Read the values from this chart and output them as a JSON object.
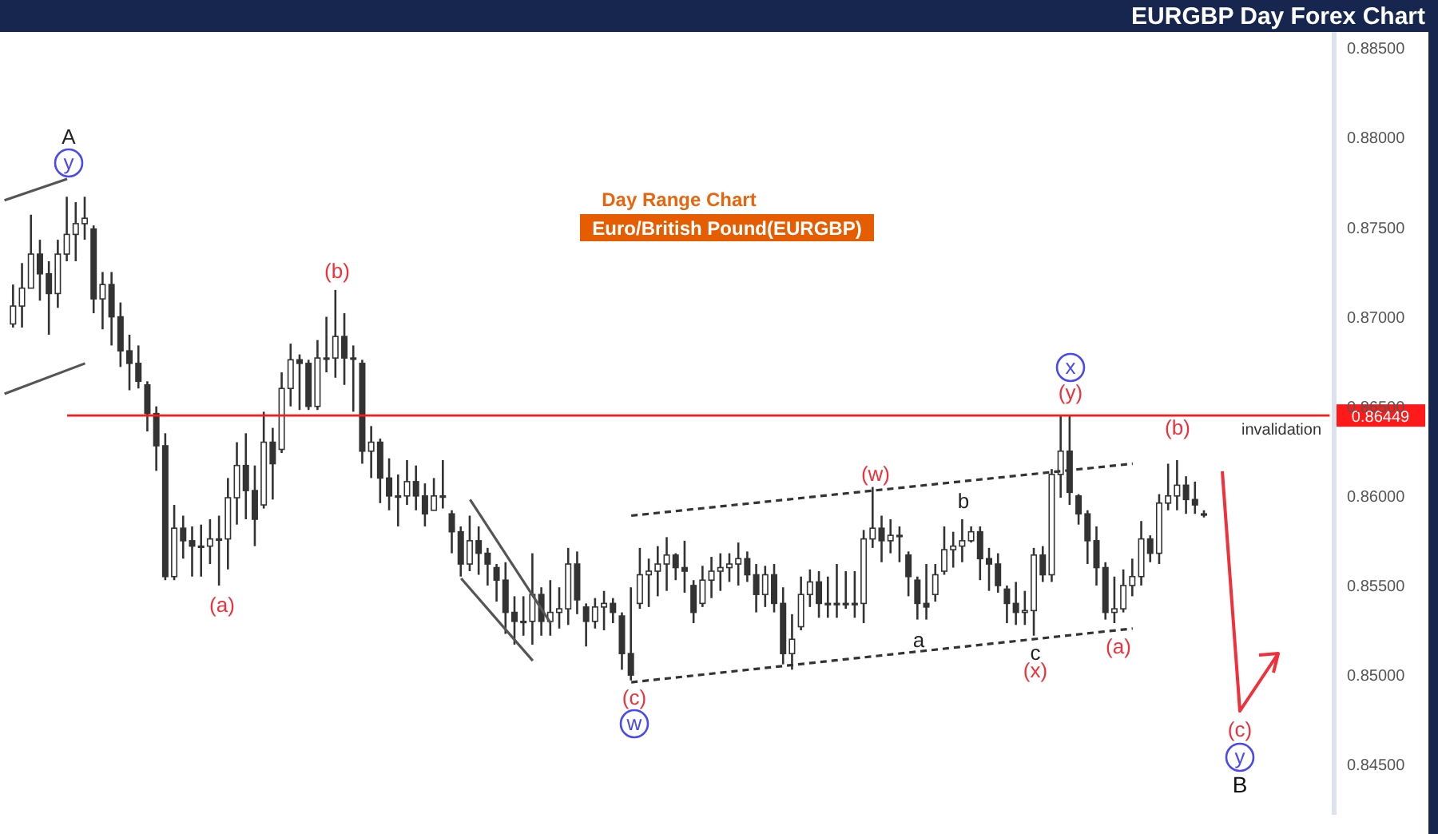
{
  "chart_data": {
    "type": "candlestick",
    "title": "EURGBP Day Forex Chart",
    "subtitle": "Day Range Chart",
    "annotations": [
      "Euro/British Pound(EURGBP)",
      "A",
      "y",
      "(b)",
      "(a)",
      "(c)",
      "w",
      "(w)",
      "b",
      "a",
      "c",
      "(x)",
      "x",
      "(y)",
      "(b)",
      "invalidation",
      "(a)",
      "(c)",
      "y",
      "B"
    ],
    "color": "#333333",
    "tick_labels": "y",
    "marker": "none",
    "ylim": [
      0.8422,
      0.8859
    ],
    "yticks": [
      {
        "value": 0.845,
        "label": "0.84500"
      },
      {
        "value": 0.85,
        "label": "0.85000"
      },
      {
        "value": 0.855,
        "label": "0.85500"
      },
      {
        "value": 0.86,
        "label": "0.86000"
      },
      {
        "value": 0.865,
        "label": "0.86500"
      },
      {
        "value": 0.87,
        "label": "0.87000"
      },
      {
        "value": 0.875,
        "label": "0.87500"
      },
      {
        "value": 0.88,
        "label": "0.88000"
      },
      {
        "value": 0.885,
        "label": "0.88500"
      }
    ],
    "ref_lines": [
      {
        "axis": "y",
        "value": 0.86449,
        "label": "0.86449",
        "color": "#ff1a1a"
      }
    ],
    "categories": [
      null,
      null,
      null,
      null,
      null,
      null,
      null,
      null,
      null,
      null,
      null,
      null,
      null,
      null,
      null,
      null,
      null,
      null,
      null,
      null,
      null,
      null,
      null,
      null,
      null,
      null,
      null,
      null,
      null,
      null,
      null,
      null,
      null,
      null,
      null,
      null,
      null,
      null,
      null,
      null,
      null,
      null,
      null,
      null,
      null,
      null,
      null,
      null,
      null,
      null,
      null,
      null,
      null,
      null,
      null,
      null,
      null,
      null,
      null,
      null,
      null,
      null,
      null,
      null,
      null,
      null,
      null,
      null,
      null,
      null,
      null,
      null,
      null,
      null,
      null,
      null,
      null,
      null,
      null,
      null,
      null,
      null,
      null,
      null,
      null,
      null,
      null,
      null,
      null,
      null,
      null,
      null,
      null,
      null,
      null,
      null,
      null,
      null,
      null,
      null,
      null,
      null,
      null,
      null,
      null,
      null,
      null,
      null,
      null,
      null,
      null,
      null,
      null,
      null,
      null,
      null,
      null,
      null,
      null,
      null,
      null,
      null,
      null,
      null,
      null,
      null,
      null,
      null,
      null,
      null,
      null,
      null,
      null,
      null,
      null,
      null,
      null,
      null,
      null,
      null,
      null,
      null,
      null,
      null,
      null,
      null,
      null,
      null,
      null
    ],
    "ohlc": [
      null,
      [
        0.8696,
        0.8718,
        0.8694,
        0.8706
      ],
      [
        0.8706,
        0.873,
        0.8694,
        0.8716
      ],
      [
        0.8716,
        0.8757,
        0.8716,
        0.8735
      ],
      [
        0.8735,
        0.8743,
        0.8709,
        0.8724
      ],
      [
        0.8724,
        0.8731,
        0.869,
        0.8713
      ],
      [
        0.8713,
        0.8743,
        0.8705,
        0.8735
      ],
      [
        0.8735,
        0.8767,
        0.8731,
        0.8746
      ],
      [
        0.8746,
        0.8764,
        0.8731,
        0.8752
      ],
      [
        0.8752,
        0.8767,
        0.8743,
        0.8755
      ],
      [
        0.8749,
        0.8751,
        0.8702,
        0.871
      ],
      [
        0.871,
        0.8725,
        0.8693,
        0.8718
      ],
      [
        0.8718,
        0.8725,
        0.8684,
        0.87
      ],
      [
        0.87,
        0.8708,
        0.8672,
        0.8681
      ],
      [
        0.8681,
        0.869,
        0.8659,
        0.8674
      ],
      [
        0.8674,
        0.8684,
        0.866,
        0.8664
      ],
      [
        0.8662,
        0.8664,
        0.8636,
        0.8646
      ],
      [
        0.8646,
        0.865,
        0.8614,
        0.8628
      ],
      [
        0.8628,
        0.8635,
        0.8553,
        0.8555
      ],
      [
        0.8555,
        0.8595,
        0.8553,
        0.8582
      ],
      [
        0.8582,
        0.8589,
        0.8565,
        0.8575
      ],
      [
        0.8575,
        0.8583,
        0.8555,
        0.8572
      ],
      [
        0.8572,
        0.8584,
        0.8555,
        0.8572
      ],
      [
        0.8572,
        0.8587,
        0.8562,
        0.8576
      ],
      [
        0.8576,
        0.8589,
        0.855,
        0.8576
      ],
      [
        0.8576,
        0.861,
        0.8559,
        0.8599
      ],
      [
        0.8599,
        0.863,
        0.8584,
        0.8617
      ],
      [
        0.8617,
        0.8635,
        0.8587,
        0.8603
      ],
      [
        0.8603,
        0.8617,
        0.8572,
        0.8587
      ],
      [
        0.8595,
        0.8647,
        0.8593,
        0.863
      ],
      [
        0.863,
        0.8638,
        0.8598,
        0.8618
      ],
      [
        0.8626,
        0.8669,
        0.8624,
        0.866
      ],
      [
        0.866,
        0.8685,
        0.865,
        0.8676
      ],
      [
        0.8676,
        0.8679,
        0.8648,
        0.8674
      ],
      [
        0.8674,
        0.8676,
        0.8648,
        0.865
      ],
      [
        0.865,
        0.8687,
        0.8648,
        0.8677
      ],
      [
        0.8677,
        0.87,
        0.8669,
        0.8677
      ],
      [
        0.8677,
        0.8715,
        0.8666,
        0.8689
      ],
      [
        0.8689,
        0.8702,
        0.8662,
        0.8677
      ],
      [
        0.8677,
        0.8684,
        0.8647,
        0.8677
      ],
      [
        0.8674,
        0.8676,
        0.8618,
        0.8625
      ],
      [
        0.8625,
        0.8639,
        0.861,
        0.863
      ],
      [
        0.863,
        0.8632,
        0.8596,
        0.861
      ],
      [
        0.861,
        0.8621,
        0.8592,
        0.86
      ],
      [
        0.86,
        0.8612,
        0.8583,
        0.86
      ],
      [
        0.86,
        0.862,
        0.8595,
        0.8608
      ],
      [
        0.8608,
        0.8617,
        0.8592,
        0.86
      ],
      [
        0.86,
        0.8607,
        0.8583,
        0.859
      ],
      [
        0.8592,
        0.861,
        0.8592,
        0.86
      ],
      [
        0.86,
        0.862,
        0.8593,
        0.86
      ],
      [
        0.859,
        0.8592,
        0.8568,
        0.858
      ],
      [
        0.858,
        0.8583,
        0.8555,
        0.8562
      ],
      [
        0.8562,
        0.8589,
        0.8558,
        0.8575
      ],
      [
        0.8575,
        0.8583,
        0.8556,
        0.8568
      ],
      [
        0.8568,
        0.8571,
        0.855,
        0.8562
      ],
      [
        0.856,
        0.8562,
        0.8541,
        0.8553
      ],
      [
        0.8553,
        0.8563,
        0.8523,
        0.8535
      ],
      [
        0.8535,
        0.8544,
        0.8517,
        0.853
      ],
      [
        0.853,
        0.8544,
        0.8522,
        0.853
      ],
      [
        0.853,
        0.8568,
        0.8517,
        0.8545
      ],
      [
        0.8545,
        0.8549,
        0.8522,
        0.853
      ],
      [
        0.853,
        0.8553,
        0.8522,
        0.8535
      ],
      [
        0.8535,
        0.8549,
        0.8526,
        0.8537
      ],
      [
        0.8537,
        0.8571,
        0.8528,
        0.8562
      ],
      [
        0.8562,
        0.8569,
        0.8534,
        0.8542
      ],
      [
        0.8538,
        0.854,
        0.8516,
        0.853
      ],
      [
        0.853,
        0.8543,
        0.8526,
        0.8538
      ],
      [
        0.8538,
        0.8547,
        0.8525,
        0.854
      ],
      [
        0.854,
        0.8543,
        0.8529,
        0.8535
      ],
      [
        0.8533,
        0.8535,
        0.8503,
        0.8512
      ],
      [
        0.8512,
        0.8549,
        0.8497,
        0.85
      ],
      [
        0.854,
        0.8571,
        0.8537,
        0.8556
      ],
      [
        0.8556,
        0.8565,
        0.8538,
        0.8558
      ],
      [
        0.8558,
        0.8572,
        0.8544,
        0.8562
      ],
      [
        0.8562,
        0.8577,
        0.8547,
        0.8567
      ],
      [
        0.8567,
        0.8568,
        0.8553,
        0.856
      ],
      [
        0.856,
        0.8575,
        0.8546,
        0.8558
      ],
      [
        0.855,
        0.8553,
        0.8529,
        0.8535
      ],
      [
        0.854,
        0.8561,
        0.8538,
        0.8553
      ],
      [
        0.8553,
        0.8566,
        0.8543,
        0.8558
      ],
      [
        0.8558,
        0.8568,
        0.8547,
        0.856
      ],
      [
        0.856,
        0.8568,
        0.8552,
        0.8562
      ],
      [
        0.8562,
        0.8574,
        0.855,
        0.8565
      ],
      [
        0.8565,
        0.8569,
        0.8552,
        0.8556
      ],
      [
        0.8556,
        0.8562,
        0.8535,
        0.8545
      ],
      [
        0.8545,
        0.8561,
        0.8538,
        0.8556
      ],
      [
        0.8556,
        0.8562,
        0.8535,
        0.854
      ],
      [
        0.854,
        0.8549,
        0.8506,
        0.8512
      ],
      [
        0.8512,
        0.8534,
        0.8503,
        0.852
      ],
      [
        0.8527,
        0.8555,
        0.8525,
        0.8545
      ],
      [
        0.8545,
        0.8559,
        0.8538,
        0.8552
      ],
      [
        0.8552,
        0.8558,
        0.8532,
        0.854
      ],
      [
        0.854,
        0.8555,
        0.8532,
        0.854
      ],
      [
        0.854,
        0.8562,
        0.8532,
        0.854
      ],
      [
        0.854,
        0.8558,
        0.8537,
        0.854
      ],
      [
        0.854,
        0.8558,
        0.8532,
        0.854
      ],
      [
        0.854,
        0.8581,
        0.8529,
        0.8576
      ],
      [
        0.8576,
        0.8605,
        0.8571,
        0.8582
      ],
      [
        0.8582,
        0.8589,
        0.8563,
        0.8575
      ],
      [
        0.8575,
        0.8587,
        0.8568,
        0.8578
      ],
      [
        0.8578,
        0.8583,
        0.8563,
        0.8578
      ],
      [
        0.8567,
        0.8569,
        0.8544,
        0.8555
      ],
      [
        0.8553,
        0.8555,
        0.8531,
        0.854
      ],
      [
        0.854,
        0.8562,
        0.8531,
        0.8538
      ],
      [
        0.8545,
        0.8562,
        0.8541,
        0.8556
      ],
      [
        0.8558,
        0.8583,
        0.8556,
        0.857
      ],
      [
        0.857,
        0.858,
        0.856,
        0.8572
      ],
      [
        0.8572,
        0.8587,
        0.8563,
        0.8575
      ],
      [
        0.8575,
        0.8583,
        0.8574,
        0.858
      ],
      [
        0.858,
        0.8583,
        0.8553,
        0.8565
      ],
      [
        0.8565,
        0.8571,
        0.8547,
        0.8562
      ],
      [
        0.8562,
        0.8568,
        0.8546,
        0.855
      ],
      [
        0.8548,
        0.855,
        0.8529,
        0.854
      ],
      [
        0.854,
        0.8552,
        0.8528,
        0.8535
      ],
      [
        0.8535,
        0.8547,
        0.8528,
        0.8536
      ],
      [
        0.8536,
        0.8571,
        0.8522,
        0.8567
      ],
      [
        0.8567,
        0.8572,
        0.8552,
        0.8556
      ],
      [
        0.8556,
        0.8615,
        0.8552,
        0.8612
      ],
      [
        0.8612,
        0.8645,
        0.8599,
        0.8625
      ],
      [
        0.8625,
        0.8645,
        0.8595,
        0.8602
      ],
      [
        0.86,
        0.8601,
        0.8584,
        0.859
      ],
      [
        0.859,
        0.8592,
        0.8562,
        0.8575
      ],
      [
        0.8575,
        0.8583,
        0.855,
        0.856
      ],
      [
        0.856,
        0.8563,
        0.8531,
        0.8535
      ],
      [
        0.8535,
        0.8555,
        0.8529,
        0.8537
      ],
      [
        0.8537,
        0.8559,
        0.8535,
        0.855
      ],
      [
        0.855,
        0.8565,
        0.8544,
        0.8555
      ],
      [
        0.8555,
        0.8586,
        0.855,
        0.8576
      ],
      [
        0.8576,
        0.8578,
        0.8563,
        0.8568
      ],
      [
        0.8568,
        0.8601,
        0.8562,
        0.8596
      ],
      [
        0.8596,
        0.8618,
        0.8592,
        0.86
      ],
      [
        0.86,
        0.862,
        0.8592,
        0.8606
      ],
      [
        0.8606,
        0.8611,
        0.859,
        0.8598
      ],
      [
        0.8598,
        0.8608,
        0.859,
        0.8595
      ],
      [
        0.859,
        0.8592,
        0.8588,
        0.859
      ],
      null,
      null,
      null,
      null,
      null,
      null,
      null,
      null,
      null,
      null,
      null,
      null,
      null,
      null
    ],
    "series": [
      {
        "type": "line",
        "color": "#333333",
        "line_style": "dashed",
        "values": [
          null,
          null,
          null,
          null,
          null,
          null,
          null,
          null,
          null,
          null,
          null,
          null,
          null,
          null,
          null,
          null,
          null,
          null,
          null,
          null,
          null,
          null,
          null,
          null,
          null,
          null,
          null,
          null,
          null,
          null,
          null,
          null,
          null,
          null,
          null,
          null,
          null,
          null,
          null,
          null,
          null,
          null,
          null,
          null,
          null,
          null,
          null,
          null,
          null,
          null,
          null,
          null,
          null,
          null,
          null,
          null,
          null,
          null,
          null,
          null,
          null,
          null,
          null,
          null,
          null,
          null,
          null,
          null,
          null,
          null,
          0.8589,
          null,
          null,
          null,
          null,
          null,
          null,
          null,
          null,
          null,
          null,
          null,
          null,
          null,
          null,
          null,
          null,
          null,
          null,
          null,
          null,
          null,
          null,
          null,
          null,
          null,
          null,
          null,
          null,
          null,
          null,
          null,
          null,
          null,
          null,
          null,
          null,
          null,
          null,
          null,
          null,
          null,
          null,
          null,
          null,
          null,
          null,
          null,
          null,
          null,
          null,
          null,
          null,
          null,
          null,
          null,
          0.8618,
          null,
          null,
          null,
          null,
          null,
          null,
          null,
          null,
          null,
          null,
          null,
          null,
          null,
          null,
          null,
          null,
          null,
          null,
          null,
          null,
          null,
          null
        ]
      },
      {
        "type": "line",
        "color": "#333333",
        "line_style": "dashed",
        "values": [
          null,
          null,
          null,
          null,
          null,
          null,
          null,
          null,
          null,
          null,
          null,
          null,
          null,
          null,
          null,
          null,
          null,
          null,
          null,
          null,
          null,
          null,
          null,
          null,
          null,
          null,
          null,
          null,
          null,
          null,
          null,
          null,
          null,
          null,
          null,
          null,
          null,
          null,
          null,
          null,
          null,
          null,
          null,
          null,
          null,
          null,
          null,
          null,
          null,
          null,
          null,
          null,
          null,
          null,
          null,
          null,
          null,
          null,
          null,
          null,
          null,
          null,
          null,
          null,
          null,
          null,
          null,
          null,
          null,
          null,
          0.8496,
          null,
          null,
          null,
          null,
          null,
          null,
          null,
          null,
          null,
          null,
          null,
          null,
          null,
          null,
          null,
          null,
          null,
          null,
          null,
          null,
          null,
          null,
          null,
          null,
          null,
          null,
          null,
          null,
          null,
          null,
          null,
          null,
          null,
          null,
          null,
          null,
          null,
          null,
          null,
          null,
          null,
          null,
          null,
          null,
          null,
          null,
          null,
          null,
          null,
          null,
          null,
          null,
          null,
          null,
          null,
          0.8526,
          null,
          null,
          null,
          null,
          null,
          null,
          null,
          null,
          null,
          null,
          null,
          null,
          null,
          null,
          null,
          null,
          null,
          null,
          null,
          null,
          null,
          null
        ]
      },
      {
        "type": "line",
        "color": "#555555",
        "line_style": "solid",
        "values": [
          0.8765,
          null,
          null,
          null,
          null,
          null,
          null,
          0.8777,
          null,
          null,
          null,
          null,
          null,
          null,
          null,
          null,
          null,
          null,
          null,
          null,
          null,
          null,
          null,
          null,
          null,
          null,
          null,
          null,
          null,
          null,
          null,
          null,
          null,
          null,
          null,
          null,
          null,
          null,
          null,
          null,
          null,
          null,
          null,
          null,
          null,
          null,
          null,
          null,
          null,
          null,
          null,
          null,
          null,
          null,
          null,
          null,
          null,
          null,
          null,
          null,
          null,
          null,
          null,
          null,
          null,
          null,
          null,
          null,
          null,
          null,
          null,
          null,
          null,
          null,
          null,
          null,
          null,
          null,
          null,
          null,
          null,
          null,
          null,
          null,
          null,
          null,
          null,
          null,
          null,
          null,
          null,
          null,
          null,
          null,
          null,
          null,
          null,
          null,
          null,
          null,
          null,
          null,
          null,
          null,
          null,
          null,
          null,
          null,
          null,
          null,
          null,
          null,
          null,
          null,
          null,
          null,
          null,
          null,
          null,
          null,
          null,
          null,
          null,
          null,
          null,
          null,
          null,
          null,
          null,
          null,
          null,
          null,
          null,
          null,
          null,
          null,
          null,
          null,
          null,
          null,
          null,
          null,
          null,
          null,
          null,
          null,
          null,
          null,
          null
        ]
      },
      {
        "type": "line",
        "color": "#555555",
        "line_style": "solid",
        "values": [
          0.8657,
          null,
          null,
          null,
          null,
          null,
          null,
          null,
          null,
          0.8674,
          null,
          null,
          null,
          null,
          null,
          null,
          null,
          null,
          null,
          null,
          null,
          null,
          null,
          null,
          null,
          null,
          null,
          null,
          null,
          null,
          null,
          null,
          null,
          null,
          null,
          null,
          null,
          null,
          null,
          null,
          null,
          null,
          null,
          null,
          null,
          null,
          null,
          null,
          null,
          null,
          null,
          null,
          null,
          null,
          null,
          null,
          null,
          null,
          null,
          null,
          null,
          null,
          null,
          null,
          null,
          null,
          null,
          null,
          null,
          null,
          null,
          null,
          null,
          null,
          null,
          null,
          null,
          null,
          null,
          null,
          null,
          null,
          null,
          null,
          null,
          null,
          null,
          null,
          null,
          null,
          null,
          null,
          null,
          null,
          null,
          null,
          null,
          null,
          null,
          null,
          null,
          null,
          null,
          null,
          null,
          null,
          null,
          null,
          null,
          null,
          null,
          null,
          null,
          null,
          null,
          null,
          null,
          null,
          null,
          null,
          null,
          null,
          null,
          null,
          null,
          null,
          null,
          null,
          null,
          null,
          null,
          null,
          null,
          null,
          null,
          null,
          null,
          null,
          null,
          null,
          null,
          null,
          null,
          null,
          null,
          null,
          null,
          null,
          null
        ]
      },
      {
        "type": "line",
        "color": "#555555",
        "line_style": "solid",
        "values": [
          null,
          null,
          null,
          null,
          null,
          null,
          null,
          null,
          null,
          null,
          null,
          null,
          null,
          null,
          null,
          null,
          null,
          null,
          null,
          null,
          null,
          null,
          null,
          null,
          null,
          null,
          null,
          null,
          null,
          null,
          null,
          null,
          null,
          null,
          null,
          null,
          null,
          null,
          null,
          null,
          null,
          null,
          null,
          null,
          null,
          null,
          null,
          null,
          null,
          null,
          null,
          null,
          0.8598,
          null,
          null,
          null,
          null,
          null,
          null,
          null,
          null,
          0.8529,
          null,
          null,
          null,
          null,
          null,
          null,
          null,
          null,
          null,
          null,
          null,
          null,
          null,
          null,
          null,
          null,
          null,
          null,
          null,
          null,
          null,
          null,
          null,
          null,
          null,
          null,
          null,
          null,
          null,
          null,
          null,
          null,
          null,
          null,
          null,
          null,
          null,
          null,
          null,
          null,
          null,
          null,
          null,
          null,
          null,
          null,
          null,
          null,
          null,
          null,
          null,
          null,
          null,
          null,
          null,
          null,
          null,
          null,
          null,
          null,
          null,
          null,
          null,
          null,
          null,
          null,
          null,
          null,
          null,
          null,
          null,
          null,
          null,
          null,
          null,
          null,
          null,
          null,
          null,
          null,
          null,
          null,
          null,
          null,
          null,
          null,
          null
        ]
      },
      {
        "type": "line",
        "color": "#555555",
        "line_style": "solid",
        "values": [
          null,
          null,
          null,
          null,
          null,
          null,
          null,
          null,
          null,
          null,
          null,
          null,
          null,
          null,
          null,
          null,
          null,
          null,
          null,
          null,
          null,
          null,
          null,
          null,
          null,
          null,
          null,
          null,
          null,
          null,
          null,
          null,
          null,
          null,
          null,
          null,
          null,
          null,
          null,
          null,
          null,
          null,
          null,
          null,
          null,
          null,
          null,
          null,
          null,
          null,
          null,
          0.8554,
          null,
          null,
          null,
          null,
          null,
          null,
          null,
          0.8508,
          null,
          null,
          null,
          null,
          null,
          null,
          null,
          null,
          null,
          null,
          null,
          null,
          null,
          null,
          null,
          null,
          null,
          null,
          null,
          null,
          null,
          null,
          null,
          null,
          null,
          null,
          null,
          null,
          null,
          null,
          null,
          null,
          null,
          null,
          null,
          null,
          null,
          null,
          null,
          null,
          null,
          null,
          null,
          null,
          null,
          null,
          null,
          null,
          null,
          null,
          null,
          null,
          null,
          null,
          null,
          null,
          null,
          null,
          null,
          null,
          null,
          null,
          null,
          null,
          null,
          null,
          null,
          null,
          null,
          null,
          null,
          null,
          null,
          null,
          null,
          null,
          null,
          null,
          null,
          null,
          null,
          null,
          null,
          null,
          null,
          null,
          null,
          null,
          null
        ]
      }
    ]
  }
}
